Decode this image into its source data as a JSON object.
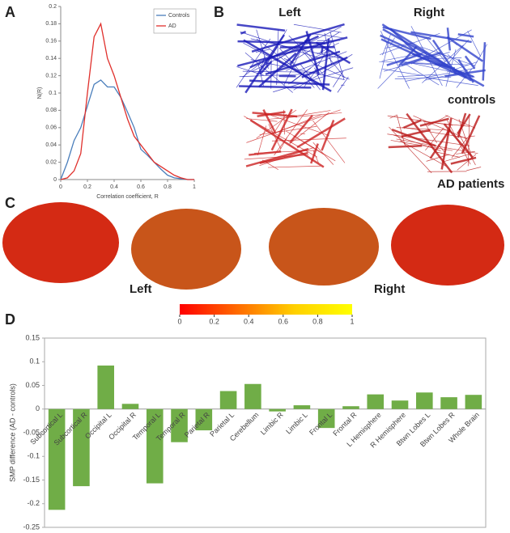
{
  "panel_letters": [
    "A",
    "B",
    "C",
    "D"
  ],
  "network": {
    "left": "Left",
    "right": "Right",
    "controls": "controls",
    "patients": "AD patients"
  },
  "brain": {
    "left": "Left",
    "right": "Right",
    "colorbar": {
      "ticks": [
        0,
        0.2,
        0.4,
        0.6,
        0.8,
        1
      ],
      "colors": [
        "#ff0000",
        "#ff6a00",
        "#ffd000",
        "#ffff00"
      ]
    }
  },
  "chart_data": [
    {
      "type": "line",
      "xlabel": "Correlation coefficient, R",
      "ylabel": "N(R)",
      "x": [
        0,
        0.05,
        0.1,
        0.15,
        0.2,
        0.25,
        0.3,
        0.35,
        0.4,
        0.45,
        0.5,
        0.55,
        0.6,
        0.65,
        0.7,
        0.75,
        0.8,
        0.85,
        0.9,
        0.95,
        1
      ],
      "series": [
        {
          "name": "Controls",
          "color": "#4a7ebb",
          "values": [
            0,
            0.02,
            0.045,
            0.06,
            0.085,
            0.11,
            0.115,
            0.107,
            0.107,
            0.095,
            0.078,
            0.06,
            0.035,
            0.028,
            0.02,
            0.012,
            0.005,
            0.002,
            0.001,
            0,
            0
          ]
        },
        {
          "name": "AD",
          "color": "#e0302c",
          "values": [
            0,
            0.002,
            0.01,
            0.03,
            0.1,
            0.165,
            0.18,
            0.14,
            0.12,
            0.095,
            0.07,
            0.05,
            0.04,
            0.03,
            0.02,
            0.015,
            0.01,
            0.005,
            0.002,
            0,
            0
          ]
        }
      ],
      "xlim": [
        0,
        1
      ],
      "xticks": [
        0,
        0.2,
        0.4,
        0.6,
        0.8,
        1
      ],
      "ylim": [
        0,
        0.2
      ],
      "yticks": [
        0,
        0.02,
        0.04,
        0.06,
        0.08,
        0.1,
        0.12,
        0.14,
        0.16,
        0.18,
        0.2
      ],
      "legend": "upper-right"
    },
    {
      "type": "bar",
      "ylabel": "SMP difference (AD - controls)",
      "color": "#70ad47",
      "categories": [
        "Subcortical L",
        "Subcortical R",
        "Occipital L",
        "Occipital R",
        "Temporal L",
        "Temporal R",
        "Parietal R",
        "Parietal L",
        "Cerebellum",
        "Limbic R",
        "Limbic L",
        "Frontal L",
        "Frontal R",
        "L Hemisphere",
        "R Hemisphere",
        "Btwn Lobes L",
        "Btwn Lobes R",
        "Whole Brain"
      ],
      "values": [
        -0.213,
        -0.163,
        0.092,
        0.011,
        -0.157,
        -0.07,
        -0.045,
        0.038,
        0.053,
        -0.005,
        0.008,
        -0.04,
        0.006,
        0.031,
        0.018,
        0.035,
        0.025,
        0.03
      ],
      "ylim": [
        -0.25,
        0.15
      ],
      "yticks": [
        -0.25,
        -0.2,
        -0.15,
        -0.1,
        -0.05,
        0,
        0.05,
        0.1,
        0.15
      ]
    }
  ]
}
